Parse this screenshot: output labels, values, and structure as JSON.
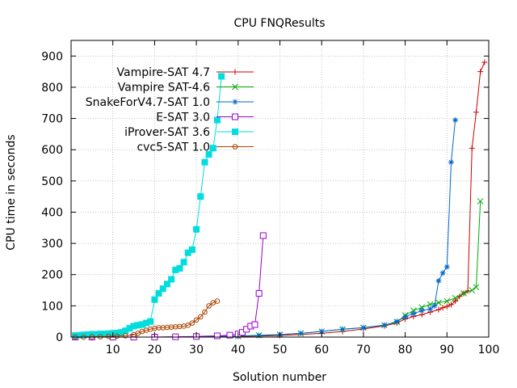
{
  "chart_data": {
    "type": "line",
    "title": "CPU FNQResults",
    "xlabel": "Solution number",
    "ylabel": "CPU time in seconds",
    "xlim": [
      0,
      100
    ],
    "ylim": [
      0,
      950
    ],
    "xticks": [
      10,
      20,
      30,
      40,
      50,
      60,
      70,
      80,
      90,
      100
    ],
    "yticks": [
      0,
      100,
      200,
      300,
      400,
      500,
      600,
      700,
      800,
      900
    ],
    "grid": true,
    "legend_position": "top-left",
    "series": [
      {
        "name": "Vampire-SAT 4.7",
        "color": "#cc0000",
        "marker": "plus",
        "x": [
          1,
          10,
          20,
          30,
          40,
          50,
          60,
          65,
          70,
          75,
          78,
          80,
          82,
          84,
          86,
          88,
          89,
          90,
          91,
          92,
          93,
          94,
          95,
          96,
          97,
          98,
          99
        ],
        "y": [
          0,
          0,
          0,
          0,
          2,
          5,
          12,
          18,
          26,
          36,
          45,
          58,
          66,
          72,
          80,
          88,
          94,
          98,
          104,
          115,
          130,
          140,
          148,
          605,
          720,
          850,
          880
        ]
      },
      {
        "name": "Vampire SAT-4.6",
        "color": "#00aa00",
        "marker": "x",
        "x": [
          1,
          10,
          20,
          30,
          40,
          45,
          50,
          55,
          60,
          65,
          70,
          75,
          78,
          80,
          82,
          84,
          86,
          88,
          90,
          92,
          94,
          96,
          97,
          98
        ],
        "y": [
          0,
          0,
          0,
          1,
          3,
          6,
          8,
          12,
          18,
          25,
          30,
          38,
          48,
          70,
          85,
          95,
          105,
          110,
          115,
          125,
          140,
          150,
          160,
          435
        ]
      },
      {
        "name": "SnakeForV4.7-SAT 1.0",
        "color": "#0066cc",
        "marker": "star",
        "x": [
          1,
          10,
          20,
          30,
          40,
          45,
          50,
          55,
          60,
          65,
          70,
          75,
          78,
          80,
          82,
          84,
          86,
          87,
          88,
          89,
          90,
          91,
          92
        ],
        "y": [
          0,
          0,
          0,
          1,
          3,
          5,
          8,
          12,
          18,
          25,
          30,
          38,
          50,
          65,
          75,
          85,
          90,
          100,
          180,
          205,
          225,
          560,
          695
        ]
      },
      {
        "name": "E-SAT 3.0",
        "color": "#9900cc",
        "marker": "square-open",
        "x": [
          1,
          5,
          10,
          15,
          20,
          25,
          30,
          35,
          38,
          40,
          41,
          42,
          43,
          44,
          45,
          46
        ],
        "y": [
          0,
          0,
          0,
          0,
          0,
          1,
          2,
          4,
          6,
          10,
          15,
          25,
          35,
          40,
          140,
          325
        ]
      },
      {
        "name": "iProver-SAT 3.6",
        "color": "#00dddd",
        "marker": "square-filled",
        "x": [
          1,
          2,
          3,
          4,
          5,
          6,
          7,
          8,
          9,
          10,
          11,
          12,
          13,
          14,
          15,
          16,
          17,
          18,
          19,
          20,
          21,
          22,
          23,
          24,
          25,
          26,
          27,
          28,
          29,
          30,
          31,
          32,
          33,
          34,
          35,
          36
        ],
        "y": [
          5,
          6,
          7,
          8,
          9,
          9,
          10,
          10,
          11,
          12,
          13,
          15,
          20,
          28,
          35,
          38,
          40,
          45,
          50,
          120,
          140,
          155,
          170,
          185,
          215,
          220,
          240,
          270,
          280,
          345,
          450,
          560,
          585,
          605,
          695,
          835
        ]
      },
      {
        "name": "cvc5-SAT 1.0",
        "color": "#aa4400",
        "marker": "circle-open",
        "x": [
          1,
          3,
          5,
          7,
          9,
          11,
          13,
          15,
          16,
          17,
          18,
          19,
          20,
          21,
          22,
          23,
          24,
          25,
          26,
          27,
          28,
          29,
          30,
          31,
          32,
          33,
          34,
          35
        ],
        "y": [
          0,
          0,
          1,
          1,
          2,
          3,
          4,
          8,
          12,
          18,
          22,
          25,
          28,
          30,
          30,
          31,
          32,
          33,
          34,
          35,
          38,
          45,
          55,
          65,
          80,
          100,
          110,
          115
        ]
      }
    ]
  }
}
